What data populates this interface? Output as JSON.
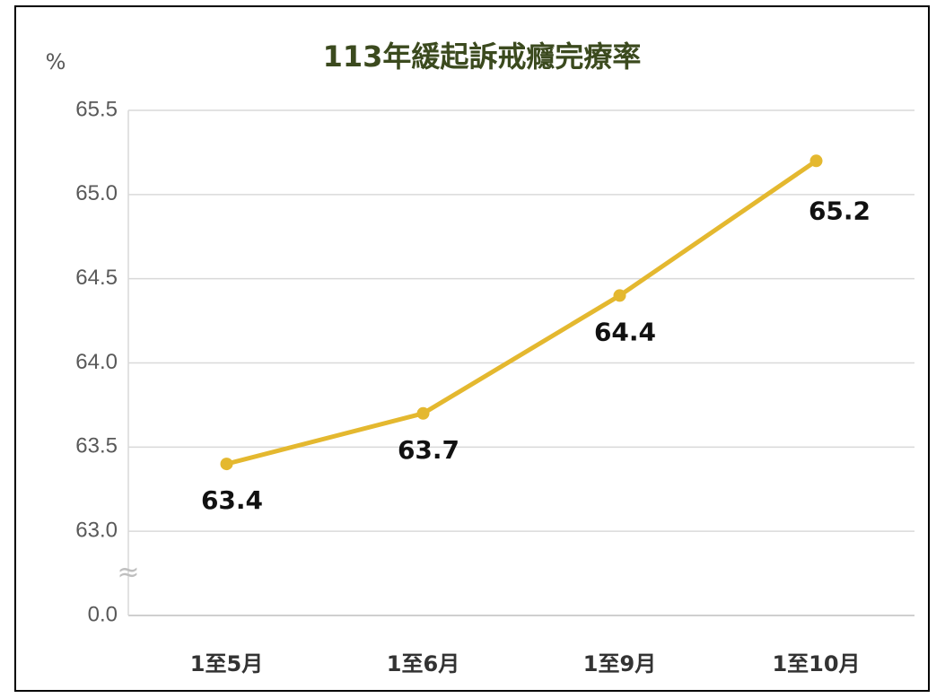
{
  "chart_data": {
    "type": "line",
    "title": "113年緩起訴戒癮完療率",
    "y_label": "%",
    "categories": [
      "1至5月",
      "1至6月",
      "1至9月",
      "1至10月"
    ],
    "series": [
      {
        "name": "完療率",
        "color": "#e4b82f",
        "values": [
          63.4,
          63.7,
          64.4,
          65.2
        ]
      }
    ],
    "ylim": [
      0,
      65.5
    ],
    "y_break": [
      0,
      63
    ],
    "break_label": "≈",
    "yticks": [
      {
        "value": 0,
        "label": "0.0"
      },
      {
        "value": 63,
        "label": "63.0"
      },
      63.5,
      {
        "value": 64,
        "label": "64.0"
      },
      64.5,
      {
        "value": 65,
        "label": "65.0"
      },
      65.5
    ],
    "grid": true
  }
}
